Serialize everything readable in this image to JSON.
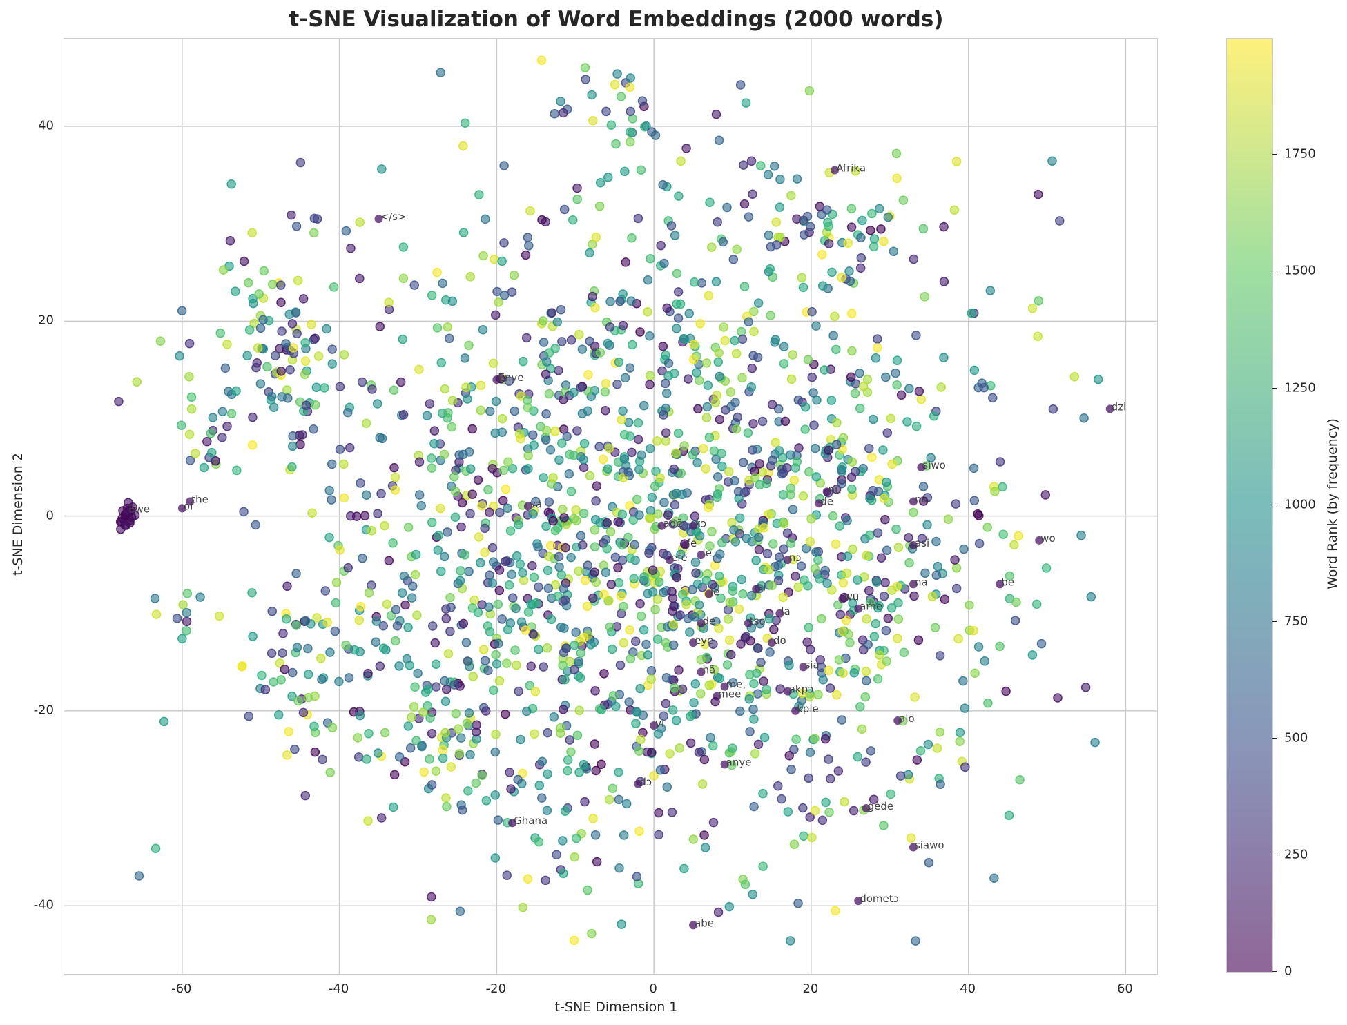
{
  "chart_data": {
    "type": "scatter",
    "title": "t-SNE Visualization of Word Embeddings (2000 words)",
    "xlabel": "t-SNE Dimension 1",
    "ylabel": "t-SNE Dimension 2",
    "xlim": [
      -75,
      64
    ],
    "ylim": [
      -47,
      49
    ],
    "x_ticks": [
      "-60",
      "-40",
      "-20",
      "0",
      "20",
      "40",
      "60"
    ],
    "y_ticks": [
      "40",
      "20",
      "0",
      "-20",
      "-40"
    ],
    "grid": true,
    "n_points": 2000,
    "colormap": "viridis",
    "colorbar": {
      "label": "Word Rank (by frequency)",
      "range": [
        0,
        1999
      ],
      "ticks": [
        "1750",
        "1500",
        "1250",
        "1000",
        "750",
        "500",
        "250",
        "0"
      ]
    },
    "annotated_words": [
      {
        "word": "Ewe",
        "x": -67,
        "y": 0.5
      },
      {
        "word": "the",
        "x": -59,
        "y": 1.5
      },
      {
        "word": "of",
        "x": -60,
        "y": 0.8
      },
      {
        "word": "</s>",
        "x": -35,
        "y": 30.5
      },
      {
        "word": "Enye",
        "x": -20,
        "y": 14
      },
      {
        "word": "va",
        "x": -16,
        "y": 1
      },
      {
        "word": "Afrika",
        "x": 23,
        "y": 35.5
      },
      {
        "word": "dzi",
        "x": 58,
        "y": 11
      },
      {
        "word": "siwo",
        "x": 34,
        "y": 5
      },
      {
        "word": "nu",
        "x": 22,
        "y": 2.5
      },
      {
        "word": "de",
        "x": 21,
        "y": 1.3
      },
      {
        "word": "nu",
        "x": 33,
        "y": 1.5
      },
      {
        "word": "adẽ",
        "x": 1,
        "y": -1
      },
      {
        "word": "xɔ",
        "x": 5,
        "y": -1
      },
      {
        "word": "fe",
        "x": 4,
        "y": -3
      },
      {
        "word": "le",
        "x": 6,
        "y": -4
      },
      {
        "word": "efe",
        "x": 2,
        "y": -4.5
      },
      {
        "word": "nɔ",
        "x": 17,
        "y": -4.5
      },
      {
        "word": "wo",
        "x": 49,
        "y": -2.5
      },
      {
        "word": "asi",
        "x": 33,
        "y": -3
      },
      {
        "word": "be",
        "x": 44,
        "y": -7
      },
      {
        "word": "na",
        "x": 33,
        "y": -7
      },
      {
        "word": "si",
        "x": 13,
        "y": -7.5
      },
      {
        "word": "le",
        "x": 7,
        "y": -8
      },
      {
        "word": "wu",
        "x": 24,
        "y": -8.5
      },
      {
        "word": "ame",
        "x": 26,
        "y": -9.5
      },
      {
        "word": "la",
        "x": 16,
        "y": -10
      },
      {
        "word": "de",
        "x": 6,
        "y": -11
      },
      {
        "word": "tso",
        "x": 12,
        "y": -11
      },
      {
        "word": "do",
        "x": 15,
        "y": -13
      },
      {
        "word": "eye",
        "x": 5,
        "y": -13
      },
      {
        "word": "sia",
        "x": 19,
        "y": -15.5
      },
      {
        "word": "hã",
        "x": 6,
        "y": -16
      },
      {
        "word": "me,",
        "x": 9,
        "y": -17.5
      },
      {
        "word": "akpɔ",
        "x": 17,
        "y": -18
      },
      {
        "word": "mee",
        "x": 8,
        "y": -18.5
      },
      {
        "word": "kple",
        "x": 18,
        "y": -20
      },
      {
        "word": "vi",
        "x": 0,
        "y": -21.5
      },
      {
        "word": "alo",
        "x": 31,
        "y": -21
      },
      {
        "word": "anye",
        "x": 9,
        "y": -25.5
      },
      {
        "word": "dɔ",
        "x": -2,
        "y": -27.5
      },
      {
        "word": "gede",
        "x": 27,
        "y": -30
      },
      {
        "word": "Ghana",
        "x": -18,
        "y": -31.5
      },
      {
        "word": "siawo",
        "x": 33,
        "y": -34
      },
      {
        "word": "dometɔ",
        "x": 26,
        "y": -39.5
      },
      {
        "word": "abe",
        "x": 5,
        "y": -42
      }
    ]
  }
}
